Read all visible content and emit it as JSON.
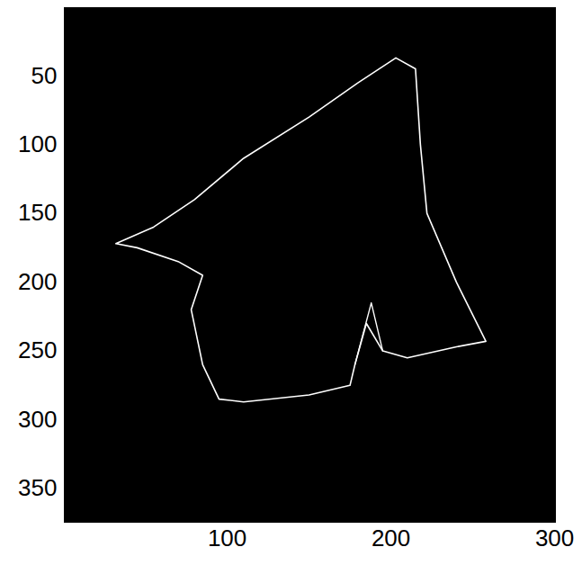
{
  "chart_data": {
    "type": "image",
    "xlim": [
      0.5,
      300.5
    ],
    "ylim": [
      0.5,
      374.5
    ],
    "xticks": [
      100,
      200,
      300
    ],
    "yticks": [
      50,
      100,
      150,
      200,
      250,
      300,
      350
    ],
    "color": "#ffffff",
    "outline": [
      [
        203,
        37
      ],
      [
        215,
        45
      ],
      [
        218,
        100
      ],
      [
        222,
        150
      ],
      [
        240,
        200
      ],
      [
        258,
        243
      ],
      [
        240,
        247
      ],
      [
        210,
        255
      ],
      [
        195,
        250
      ],
      [
        185,
        230
      ],
      [
        178,
        260
      ],
      [
        175,
        275
      ],
      [
        150,
        282
      ],
      [
        110,
        287
      ],
      [
        95,
        285
      ],
      [
        85,
        260
      ],
      [
        78,
        220
      ],
      [
        85,
        195
      ],
      [
        70,
        185
      ],
      [
        45,
        175
      ],
      [
        32,
        172
      ],
      [
        55,
        160
      ],
      [
        80,
        140
      ],
      [
        110,
        110
      ],
      [
        150,
        80
      ],
      [
        180,
        55
      ],
      [
        203,
        37
      ]
    ],
    "crack": [
      [
        178,
        260
      ],
      [
        188,
        215
      ],
      [
        195,
        250
      ]
    ]
  }
}
